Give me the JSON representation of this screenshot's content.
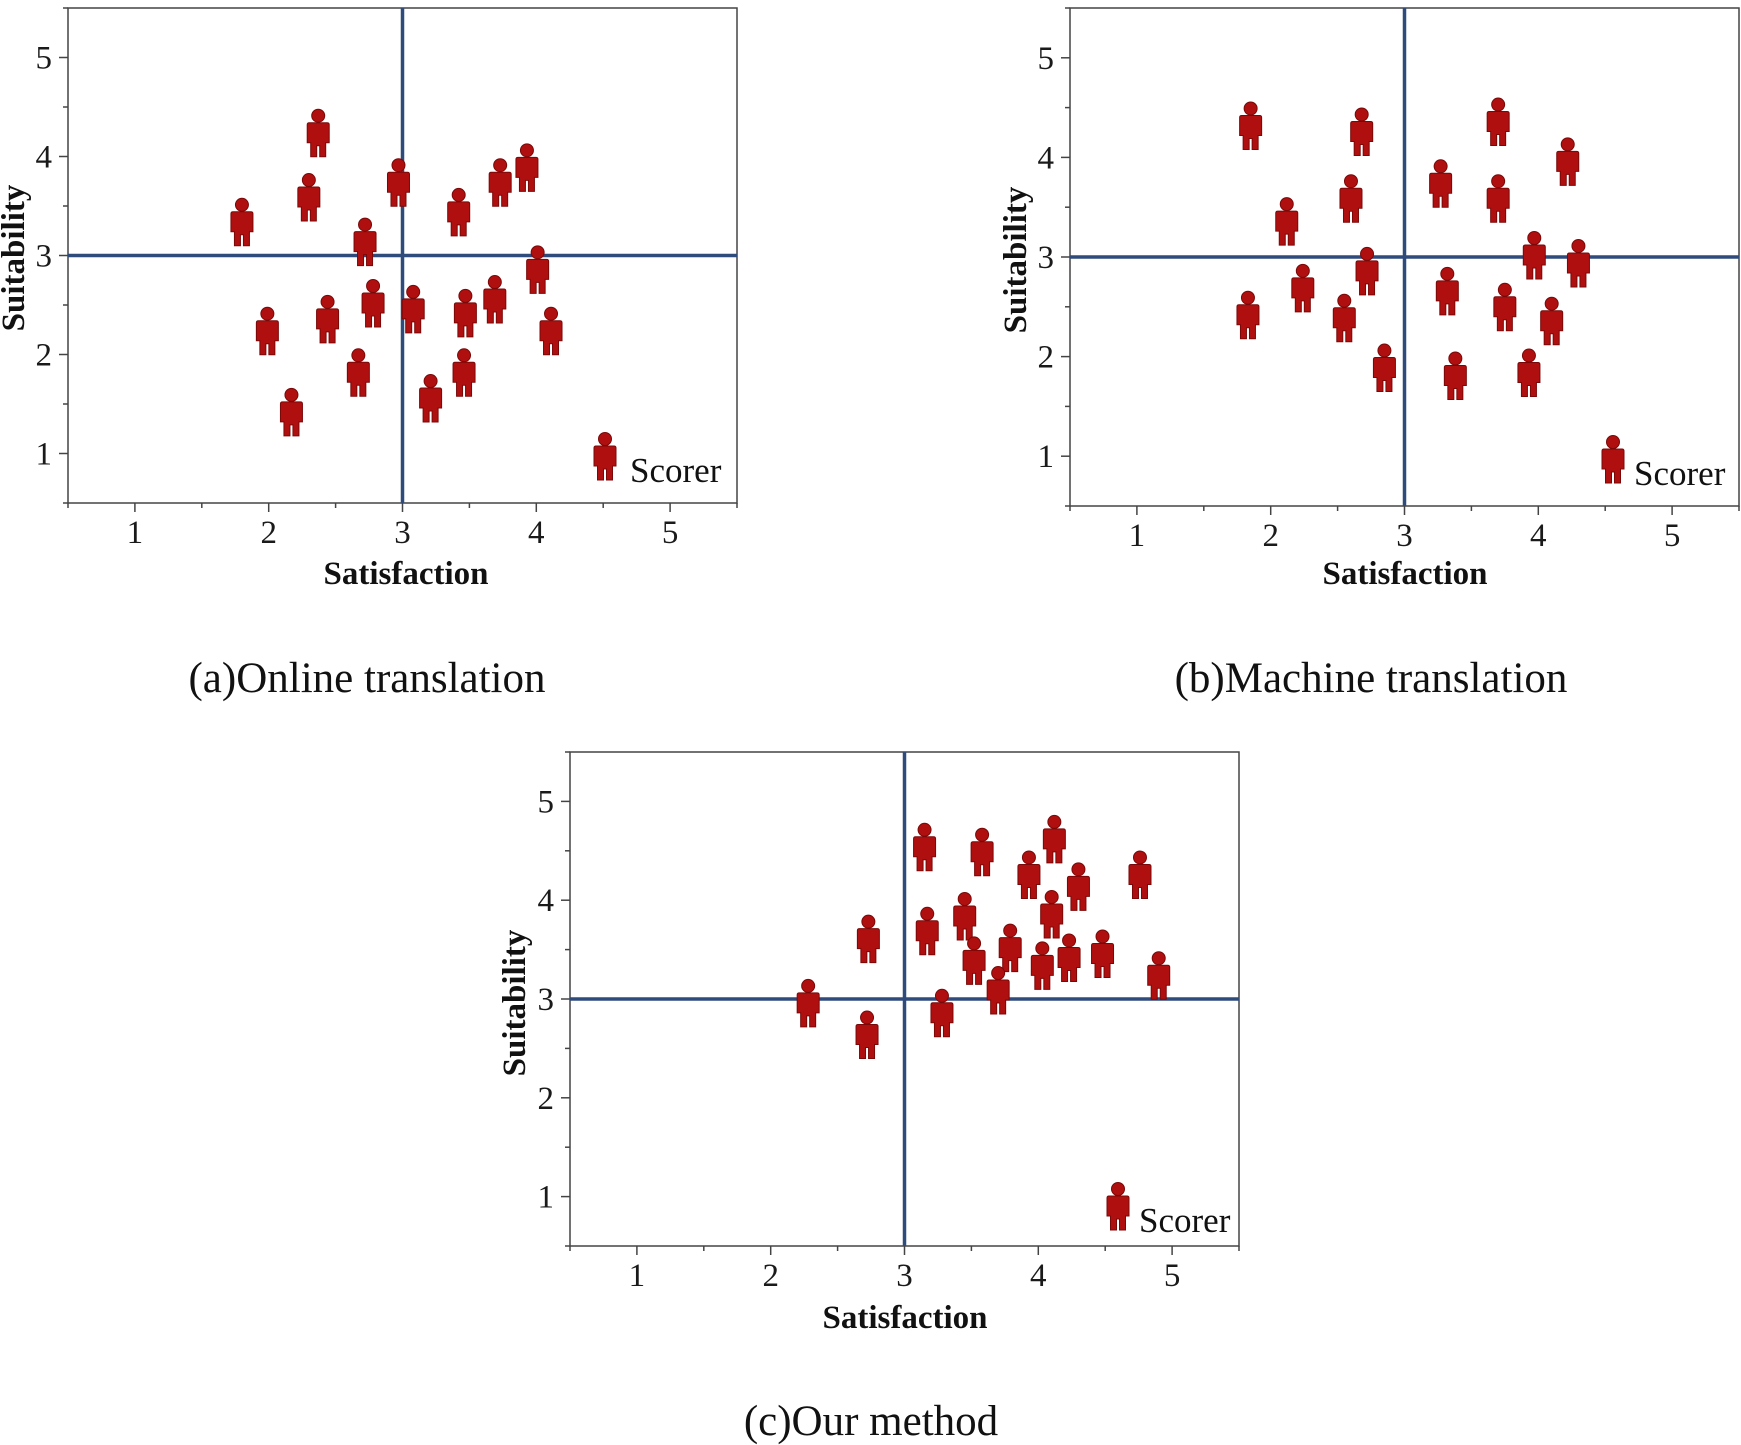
{
  "colors": {
    "marker": "#b00f0f",
    "marker_dark": "#7a0808",
    "ref_line": "#2f4b7c",
    "frame": "#444444"
  },
  "chart_data": [
    {
      "type": "scatter",
      "caption": "(a)Online translation",
      "xlabel": "Satisfaction",
      "ylabel": "Suitability",
      "xlim": [
        0.5,
        5.5
      ],
      "ylim": [
        0.5,
        5.5
      ],
      "xticks": [
        1,
        2,
        3,
        4,
        5
      ],
      "yticks": [
        1,
        2,
        3,
        4,
        5
      ],
      "reference_lines": {
        "x": 3,
        "y": 3
      },
      "legend": "Scorer",
      "legend_position": "bottom-right",
      "marker": "person-icon",
      "points": [
        {
          "x": 1.8,
          "y": 3.3
        },
        {
          "x": 2.37,
          "y": 4.2
        },
        {
          "x": 2.3,
          "y": 3.55
        },
        {
          "x": 2.72,
          "y": 3.1
        },
        {
          "x": 2.97,
          "y": 3.7
        },
        {
          "x": 3.42,
          "y": 3.4
        },
        {
          "x": 3.73,
          "y": 3.7
        },
        {
          "x": 3.93,
          "y": 3.85
        },
        {
          "x": 1.99,
          "y": 2.2
        },
        {
          "x": 2.44,
          "y": 2.32
        },
        {
          "x": 2.78,
          "y": 2.48
        },
        {
          "x": 3.08,
          "y": 2.42
        },
        {
          "x": 3.47,
          "y": 2.38
        },
        {
          "x": 3.69,
          "y": 2.52
        },
        {
          "x": 4.01,
          "y": 2.82
        },
        {
          "x": 4.11,
          "y": 2.2
        },
        {
          "x": 2.17,
          "y": 1.38
        },
        {
          "x": 2.67,
          "y": 1.78
        },
        {
          "x": 3.21,
          "y": 1.52
        },
        {
          "x": 3.46,
          "y": 1.78
        }
      ]
    },
    {
      "type": "scatter",
      "caption": "(b)Machine translation",
      "xlabel": "Satisfaction",
      "ylabel": "Suitability",
      "xlim": [
        0.5,
        5.5
      ],
      "ylim": [
        0.5,
        5.5
      ],
      "xticks": [
        1,
        2,
        3,
        4,
        5
      ],
      "yticks": [
        1,
        2,
        3,
        4,
        5
      ],
      "reference_lines": {
        "x": 3,
        "y": 3
      },
      "legend": "Scorer",
      "legend_position": "bottom-right",
      "marker": "person-icon",
      "points": [
        {
          "x": 1.85,
          "y": 4.28
        },
        {
          "x": 2.68,
          "y": 4.22
        },
        {
          "x": 3.7,
          "y": 4.32
        },
        {
          "x": 4.22,
          "y": 3.92
        },
        {
          "x": 2.12,
          "y": 3.32
        },
        {
          "x": 2.6,
          "y": 3.55
        },
        {
          "x": 3.27,
          "y": 3.7
        },
        {
          "x": 3.7,
          "y": 3.55
        },
        {
          "x": 2.24,
          "y": 2.65
        },
        {
          "x": 2.72,
          "y": 2.82
        },
        {
          "x": 3.32,
          "y": 2.62
        },
        {
          "x": 3.97,
          "y": 2.98
        },
        {
          "x": 4.3,
          "y": 2.9
        },
        {
          "x": 1.83,
          "y": 2.38
        },
        {
          "x": 2.55,
          "y": 2.35
        },
        {
          "x": 3.75,
          "y": 2.46
        },
        {
          "x": 4.1,
          "y": 2.32
        },
        {
          "x": 2.85,
          "y": 1.85
        },
        {
          "x": 3.38,
          "y": 1.77
        },
        {
          "x": 3.93,
          "y": 1.8
        }
      ]
    },
    {
      "type": "scatter",
      "caption": "(c)Our method",
      "xlabel": "Satisfaction",
      "ylabel": "Suitability",
      "xlim": [
        0.5,
        5.5
      ],
      "ylim": [
        0.5,
        5.5
      ],
      "xticks": [
        1,
        2,
        3,
        4,
        5
      ],
      "yticks": [
        1,
        2,
        3,
        4,
        5
      ],
      "reference_lines": {
        "x": 3,
        "y": 3
      },
      "legend": "Scorer",
      "legend_position": "bottom-right",
      "marker": "person-icon",
      "points": [
        {
          "x": 3.15,
          "y": 4.5
        },
        {
          "x": 3.58,
          "y": 4.45
        },
        {
          "x": 4.12,
          "y": 4.58
        },
        {
          "x": 3.93,
          "y": 4.22
        },
        {
          "x": 4.3,
          "y": 4.1
        },
        {
          "x": 4.76,
          "y": 4.22
        },
        {
          "x": 2.73,
          "y": 3.57
        },
        {
          "x": 3.17,
          "y": 3.65
        },
        {
          "x": 3.45,
          "y": 3.8
        },
        {
          "x": 4.1,
          "y": 3.82
        },
        {
          "x": 3.52,
          "y": 3.35
        },
        {
          "x": 3.79,
          "y": 3.48
        },
        {
          "x": 4.03,
          "y": 3.3
        },
        {
          "x": 4.23,
          "y": 3.38
        },
        {
          "x": 4.48,
          "y": 3.42
        },
        {
          "x": 4.9,
          "y": 3.2
        },
        {
          "x": 2.28,
          "y": 2.92
        },
        {
          "x": 3.7,
          "y": 3.05
        },
        {
          "x": 3.28,
          "y": 2.82
        },
        {
          "x": 2.72,
          "y": 2.6
        }
      ]
    }
  ]
}
